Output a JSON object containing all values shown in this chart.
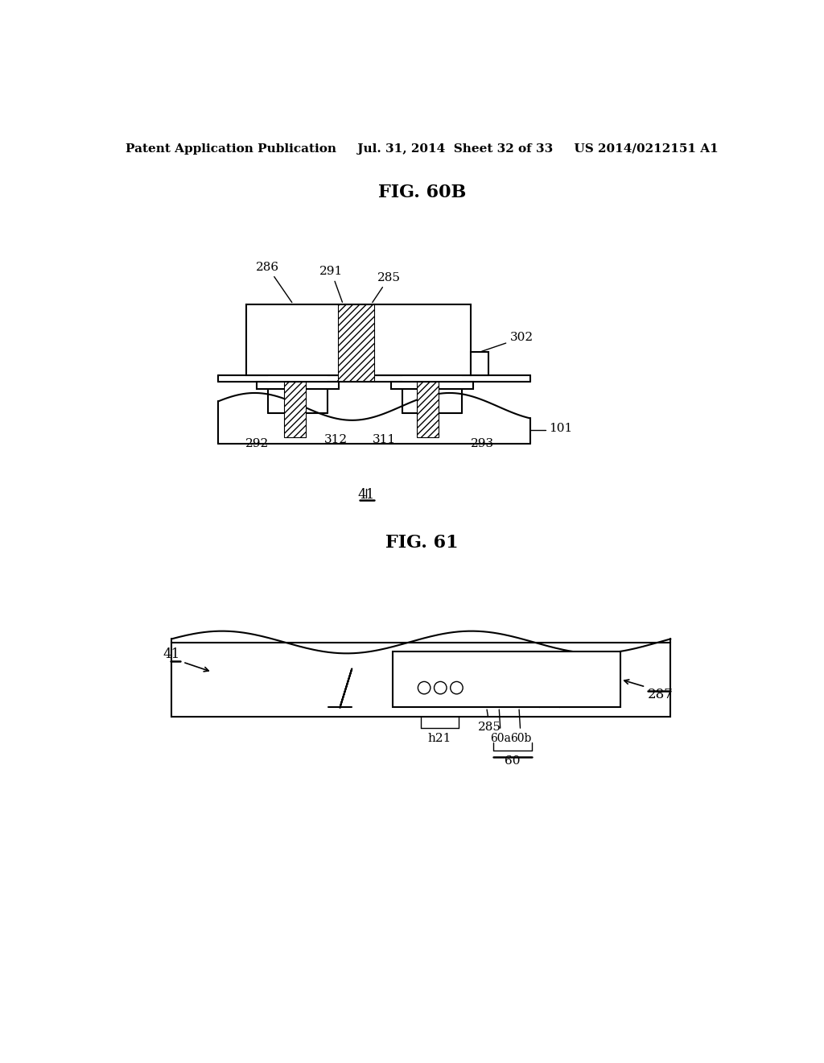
{
  "bg_color": "#ffffff",
  "header_text": "Patent Application Publication     Jul. 31, 2014  Sheet 32 of 33     US 2014/0212151 A1",
  "fig60b_title": "FIG. 60B",
  "fig61_title": "FIG. 61",
  "line_color": "#000000",
  "font_size_header": 11,
  "font_size_title": 16,
  "font_size_label": 11
}
